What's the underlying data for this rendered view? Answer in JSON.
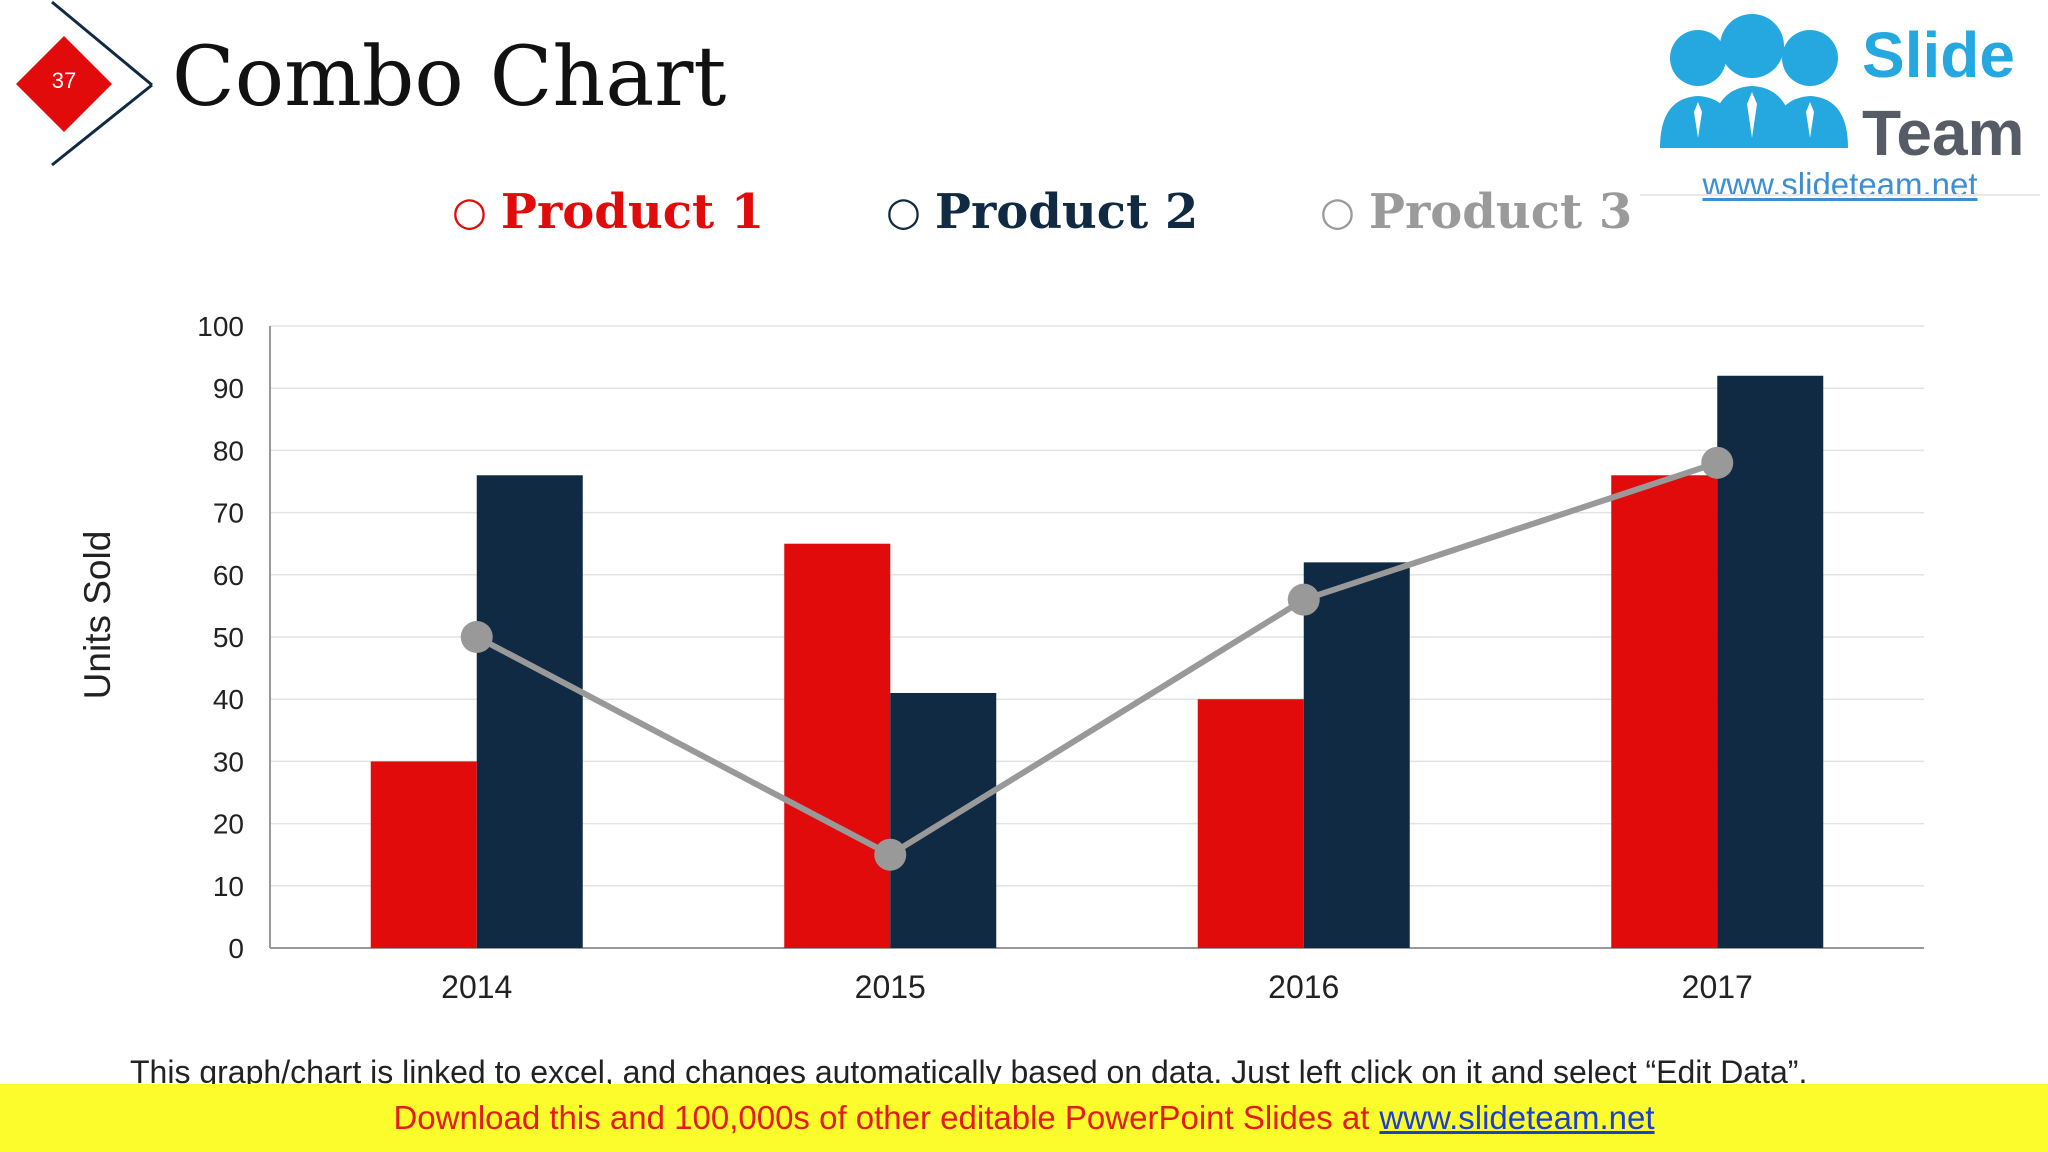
{
  "slide": {
    "number": "37",
    "title": "Combo Chart",
    "note": "This graph/chart is linked to excel, and changes automatically based on data. Just left click on it and select “Edit Data”."
  },
  "logo": {
    "word1": "Slide",
    "word2": "Team",
    "url": "www.slideteam.net"
  },
  "legend": {
    "marker": "○",
    "items": [
      "Product 1",
      "Product 2",
      "Product 3"
    ]
  },
  "banner": {
    "text": "Download this and 100,000s of other editable PowerPoint Slides at",
    "link": "www.slideteam.net"
  },
  "colors": {
    "product1": "#e10b0b",
    "product2": "#0f2a42",
    "product3": "#999999",
    "badge": "#e10b0b",
    "banner": "#fcfc2c"
  },
  "chart_data": {
    "type": "bar",
    "categories": [
      "2014",
      "2015",
      "2016",
      "2017"
    ],
    "series": [
      {
        "name": "Product 1",
        "type": "bar",
        "values": [
          30,
          65,
          40,
          76
        ]
      },
      {
        "name": "Product 2",
        "type": "bar",
        "values": [
          76,
          41,
          62,
          92
        ]
      },
      {
        "name": "Product 3",
        "type": "line",
        "values": [
          50,
          15,
          56,
          78
        ]
      }
    ],
    "title": "",
    "xlabel": "",
    "ylabel": "Units Sold",
    "ylim": [
      0,
      100
    ],
    "yticks": [
      0,
      10,
      20,
      30,
      40,
      50,
      60,
      70,
      80,
      90,
      100
    ],
    "grid": true,
    "legend": "top"
  }
}
